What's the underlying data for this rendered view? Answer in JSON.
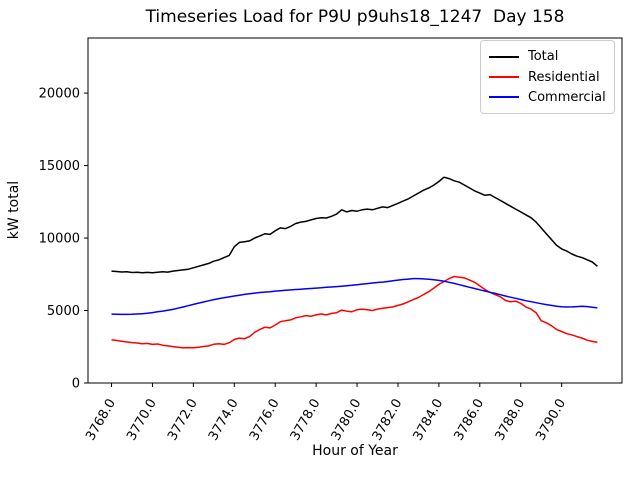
{
  "title": "Timeseries Load for P9U p9uhs18_1247  Day 158",
  "legend": {
    "entries": [
      {
        "label": "Total",
        "color": "#000000"
      },
      {
        "label": "Residential",
        "color": "#ff0000"
      },
      {
        "label": "Commercial",
        "color": "#0000ff"
      }
    ]
  },
  "chart_data": {
    "type": "line",
    "title": "Timeseries Load for P9U p9uhs18_1247  Day 158",
    "xlabel": "Hour of Year",
    "ylabel": "kW total",
    "xlim": [
      3766.85,
      3792.95
    ],
    "ylim": [
      0,
      23800
    ],
    "grid": false,
    "legend_position": "upper right",
    "xticks": [
      3768,
      3770,
      3772,
      3774,
      3776,
      3778,
      3780,
      3782,
      3784,
      3786,
      3788,
      3790
    ],
    "xtick_labels": [
      "3768.0",
      "3770.0",
      "3772.0",
      "3774.0",
      "3776.0",
      "3778.0",
      "3780.0",
      "3782.0",
      "3784.0",
      "3786.0",
      "3788.0",
      "3790.0"
    ],
    "yticks": [
      0,
      5000,
      10000,
      15000,
      20000
    ],
    "ytick_labels": [
      "0",
      "5000",
      "10000",
      "15000",
      "20000"
    ],
    "x": [
      3768,
      3768.25,
      3768.5,
      3768.75,
      3769,
      3769.25,
      3769.5,
      3769.75,
      3770,
      3770.25,
      3770.5,
      3770.75,
      3771,
      3771.25,
      3771.5,
      3771.75,
      3772,
      3772.25,
      3772.5,
      3772.75,
      3773,
      3773.25,
      3773.5,
      3773.75,
      3774,
      3774.25,
      3774.5,
      3774.75,
      3775,
      3775.25,
      3775.5,
      3775.75,
      3776,
      3776.25,
      3776.5,
      3776.75,
      3777,
      3777.25,
      3777.5,
      3777.75,
      3778,
      3778.25,
      3778.5,
      3778.75,
      3779,
      3779.25,
      3779.5,
      3779.75,
      3780,
      3780.25,
      3780.5,
      3780.75,
      3781,
      3781.25,
      3781.5,
      3781.75,
      3782,
      3782.25,
      3782.5,
      3782.75,
      3783,
      3783.25,
      3783.5,
      3783.75,
      3784,
      3784.25,
      3784.5,
      3784.75,
      3785,
      3785.25,
      3785.5,
      3785.75,
      3786,
      3786.25,
      3786.5,
      3786.75,
      3787,
      3787.25,
      3787.5,
      3787.75,
      3788,
      3788.25,
      3788.5,
      3788.75,
      3789,
      3789.25,
      3789.5,
      3789.75,
      3790,
      3790.25,
      3790.5,
      3790.75,
      3791,
      3791.25,
      3791.5,
      3791.75
    ],
    "series": [
      {
        "name": "Total",
        "color": "#000000",
        "values": [
          7720,
          7690,
          7660,
          7680,
          7620,
          7640,
          7600,
          7630,
          7600,
          7640,
          7680,
          7650,
          7720,
          7760,
          7800,
          7850,
          7950,
          8050,
          8150,
          8250,
          8400,
          8500,
          8650,
          8800,
          9400,
          9700,
          9750,
          9800,
          10000,
          10150,
          10300,
          10250,
          10500,
          10700,
          10650,
          10800,
          11000,
          11100,
          11150,
          11250,
          11350,
          11400,
          11380,
          11500,
          11650,
          11950,
          11800,
          11900,
          11850,
          11950,
          12000,
          11950,
          12050,
          12150,
          12100,
          12250,
          12400,
          12550,
          12700,
          12900,
          13100,
          13300,
          13450,
          13650,
          13900,
          14200,
          14100,
          13950,
          13850,
          13650,
          13450,
          13250,
          13100,
          12950,
          13000,
          12800,
          12600,
          12400,
          12200,
          12000,
          11800,
          11600,
          11400,
          11100,
          10700,
          10300,
          9900,
          9500,
          9250,
          9100,
          8900,
          8750,
          8650,
          8500,
          8350,
          8050
        ]
      },
      {
        "name": "Residential",
        "color": "#ff0000",
        "values": [
          2980,
          2930,
          2880,
          2830,
          2790,
          2760,
          2710,
          2730,
          2660,
          2690,
          2610,
          2560,
          2510,
          2460,
          2420,
          2440,
          2430,
          2470,
          2520,
          2560,
          2680,
          2710,
          2660,
          2780,
          3000,
          3100,
          3050,
          3200,
          3500,
          3700,
          3850,
          3800,
          4000,
          4230,
          4300,
          4350,
          4500,
          4570,
          4650,
          4600,
          4700,
          4760,
          4700,
          4800,
          4850,
          5030,
          4950,
          4920,
          5050,
          5100,
          5050,
          5000,
          5100,
          5150,
          5200,
          5250,
          5350,
          5450,
          5600,
          5750,
          5900,
          6100,
          6300,
          6550,
          6800,
          7000,
          7200,
          7350,
          7300,
          7250,
          7100,
          6950,
          6700,
          6450,
          6250,
          6100,
          5950,
          5700,
          5600,
          5650,
          5500,
          5250,
          5100,
          4850,
          4300,
          4150,
          3950,
          3700,
          3550,
          3400,
          3320,
          3200,
          3100,
          2950,
          2870,
          2800
        ]
      },
      {
        "name": "Commercial",
        "color": "#0000ff",
        "values": [
          4750,
          4740,
          4730,
          4730,
          4740,
          4760,
          4780,
          4810,
          4860,
          4910,
          4960,
          5020,
          5080,
          5160,
          5240,
          5330,
          5420,
          5510,
          5590,
          5670,
          5750,
          5820,
          5880,
          5940,
          6000,
          6060,
          6110,
          6160,
          6200,
          6240,
          6270,
          6300,
          6340,
          6370,
          6400,
          6420,
          6450,
          6470,
          6500,
          6520,
          6550,
          6570,
          6600,
          6620,
          6650,
          6680,
          6710,
          6740,
          6780,
          6820,
          6860,
          6900,
          6930,
          6960,
          7000,
          7050,
          7100,
          7140,
          7170,
          7200,
          7200,
          7180,
          7160,
          7120,
          7080,
          7020,
          6950,
          6870,
          6780,
          6690,
          6600,
          6520,
          6430,
          6350,
          6260,
          6180,
          6090,
          6000,
          5920,
          5840,
          5760,
          5680,
          5610,
          5540,
          5470,
          5410,
          5350,
          5300,
          5260,
          5240,
          5250,
          5270,
          5290,
          5270,
          5230,
          5180
        ]
      }
    ]
  }
}
